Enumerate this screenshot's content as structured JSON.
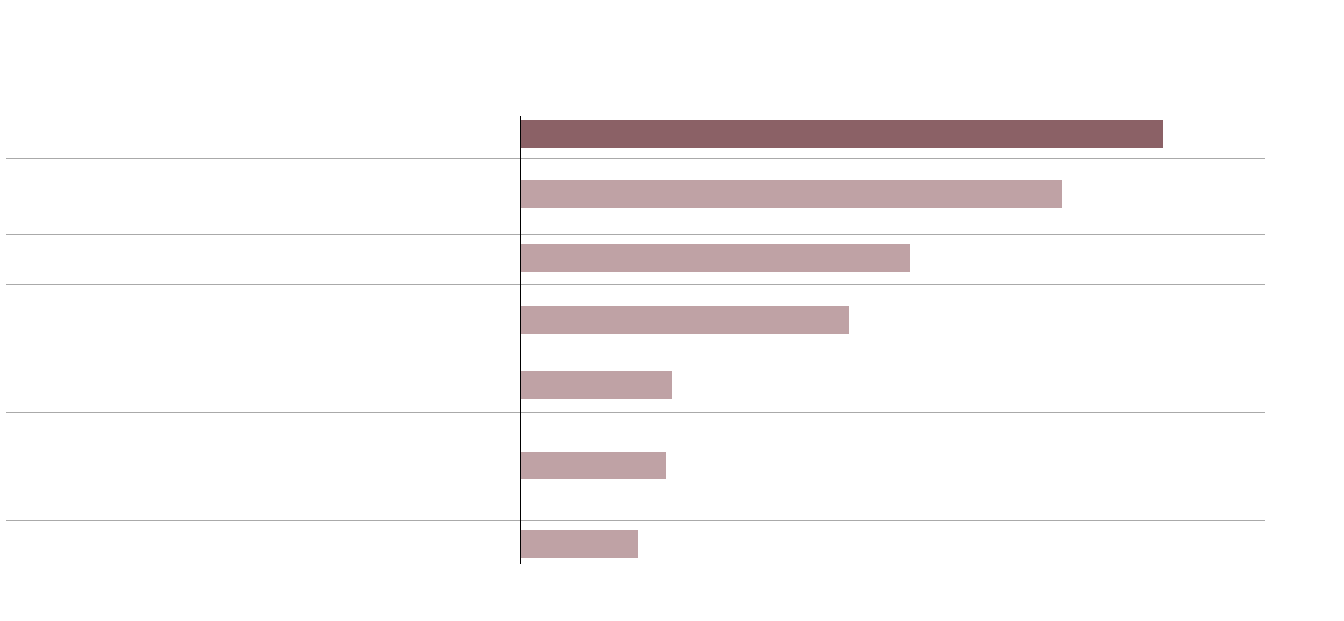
{
  "chart_data": {
    "type": "bar",
    "orientation": "horizontal",
    "values": [
      793,
      669,
      481,
      405,
      187,
      179,
      145
    ],
    "colors": [
      "#8b6166",
      "#bfa2a5",
      "#bfa2a5",
      "#bfa2a5",
      "#bfa2a5",
      "#bfa2a5",
      "#bfa2a5"
    ],
    "xlim": [
      0,
      920
    ]
  }
}
